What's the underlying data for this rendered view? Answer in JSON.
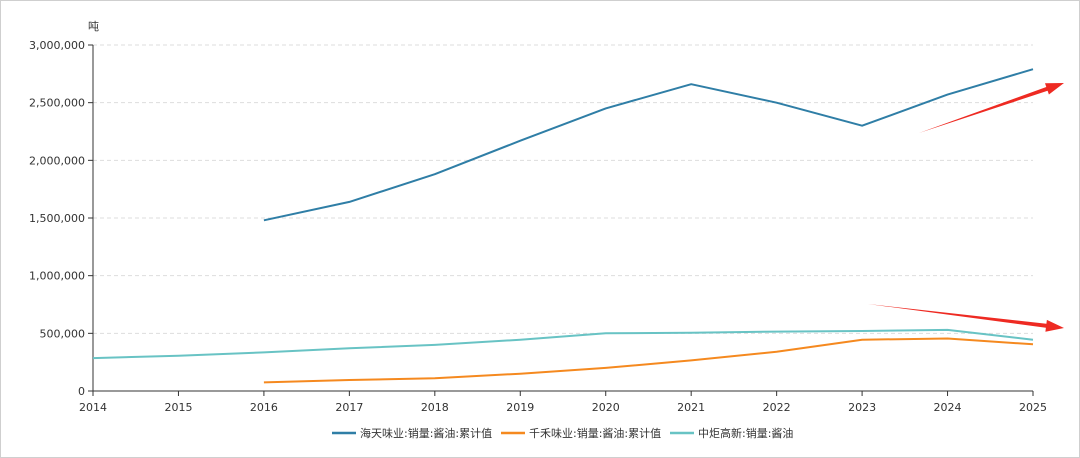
{
  "chart_data": {
    "type": "line",
    "y_unit": "吨",
    "x": [
      "2014",
      "2015",
      "2016",
      "2017",
      "2018",
      "2019",
      "2020",
      "2021",
      "2022",
      "2023",
      "2024",
      "2025"
    ],
    "ylim": [
      0,
      3000000
    ],
    "y_ticks": [
      0,
      500000,
      1000000,
      1500000,
      2000000,
      2500000,
      3000000
    ],
    "y_tick_labels": [
      "0",
      "500,000",
      "1,000,000",
      "1,500,000",
      "2,000,000",
      "2,500,000",
      "3,000,000"
    ],
    "grid": "horizontal dashed",
    "legend_position": "bottom-center",
    "series": [
      {
        "name": "海天味业:销量:酱油:累计值",
        "color": "#2f7ea6",
        "values": [
          null,
          null,
          1480000,
          1640000,
          1880000,
          2170000,
          2450000,
          2660000,
          2500000,
          2300000,
          2570000,
          2790000
        ]
      },
      {
        "name": "千禾味业:销量:酱油:累计值",
        "color": "#f5891f",
        "values": [
          null,
          null,
          75000,
          95000,
          110000,
          150000,
          200000,
          265000,
          340000,
          445000,
          455000,
          405000
        ]
      },
      {
        "name": "中炬高新:销量:酱油",
        "color": "#68c3c4",
        "values": [
          285000,
          305000,
          335000,
          370000,
          400000,
          445000,
          500000,
          505000,
          515000,
          520000,
          530000,
          445000
        ]
      }
    ],
    "annotations": [
      {
        "type": "arrow",
        "color": "#ee2a22",
        "direction": "up"
      },
      {
        "type": "arrow",
        "color": "#ee2a22",
        "direction": "down"
      }
    ]
  }
}
